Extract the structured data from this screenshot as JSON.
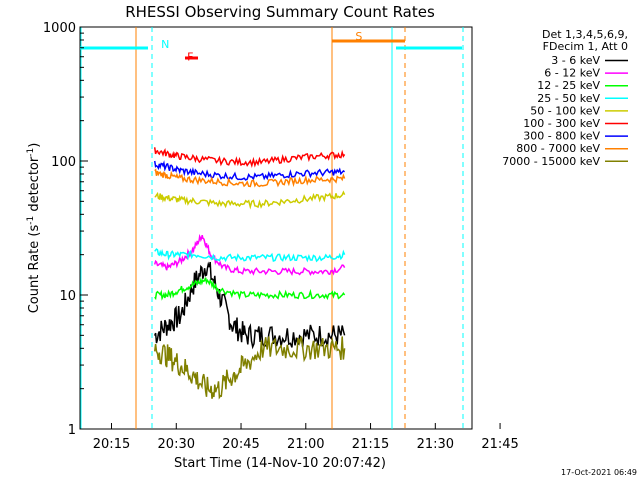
{
  "chart_data": {
    "type": "line",
    "title": "RHESSI Observing Summary Count Rates",
    "xlabel": "Start Time (14-Nov-10 20:07:42)",
    "ylabel_main": "Count Rate (s",
    "ylabel_sup1": "-1",
    "ylabel_mid": " detector",
    "ylabel_sup2": "-1",
    "ylabel_end": ")",
    "yscale": "log",
    "ylim": [
      1,
      1000
    ],
    "xlim_min": [
      7.7,
      98.5
    ],
    "x_ticks": [
      {
        "min": 15,
        "label": "20:15"
      },
      {
        "min": 30,
        "label": "20:30"
      },
      {
        "min": 45,
        "label": "20:45"
      },
      {
        "min": 60,
        "label": "21:00"
      },
      {
        "min": 75,
        "label": "21:15"
      },
      {
        "min": 90,
        "label": "21:30"
      },
      {
        "min": 105,
        "label": "21:45"
      }
    ],
    "x_tick_min_values": [
      15,
      30,
      45,
      60,
      75,
      90,
      105
    ],
    "y_ticks": [
      {
        "value": 1,
        "label": "1"
      },
      {
        "value": 10,
        "label": "10"
      },
      {
        "value": 100,
        "label": "100"
      },
      {
        "value": 1000,
        "label": "1000"
      }
    ],
    "legend_header": [
      "Det 1,3,4,5,6,9,",
      "FDecim 1, Att 0"
    ],
    "series": [
      {
        "name": "3 - 6 keV",
        "color": "#000000",
        "values_note": "noisy, ~4-20",
        "points": [
          [
            25,
            5
          ],
          [
            28,
            6
          ],
          [
            31,
            7
          ],
          [
            34,
            12
          ],
          [
            37,
            17
          ],
          [
            40,
            10
          ],
          [
            43,
            6
          ],
          [
            46,
            5
          ],
          [
            50,
            5
          ],
          [
            55,
            5
          ],
          [
            60,
            5
          ],
          [
            65,
            5
          ],
          [
            69,
            5
          ]
        ]
      },
      {
        "name": "6 - 12 keV",
        "color": "#ff00ff",
        "points": [
          [
            25,
            17
          ],
          [
            28,
            16
          ],
          [
            31,
            18
          ],
          [
            34,
            22
          ],
          [
            36,
            28
          ],
          [
            38,
            20
          ],
          [
            41,
            16
          ],
          [
            45,
            15
          ],
          [
            50,
            15
          ],
          [
            55,
            15
          ],
          [
            60,
            15
          ],
          [
            65,
            15
          ],
          [
            69,
            16
          ]
        ]
      },
      {
        "name": "12 - 25 keV",
        "color": "#00ff00",
        "points": [
          [
            25,
            10
          ],
          [
            28,
            10
          ],
          [
            31,
            11
          ],
          [
            34,
            12
          ],
          [
            37,
            13
          ],
          [
            40,
            11
          ],
          [
            45,
            10
          ],
          [
            50,
            10
          ],
          [
            55,
            10
          ],
          [
            60,
            10
          ],
          [
            65,
            10
          ],
          [
            69,
            10
          ]
        ]
      },
      {
        "name": "25 - 50 keV",
        "color": "#00ffff",
        "points": [
          [
            25,
            21
          ],
          [
            28,
            20
          ],
          [
            31,
            20
          ],
          [
            35,
            20
          ],
          [
            40,
            19
          ],
          [
            45,
            19
          ],
          [
            50,
            19
          ],
          [
            55,
            19
          ],
          [
            60,
            19
          ],
          [
            65,
            19
          ],
          [
            69,
            20
          ]
        ]
      },
      {
        "name": "50 - 100 keV",
        "color": "#cccc00",
        "points": [
          [
            25,
            55
          ],
          [
            28,
            53
          ],
          [
            31,
            51
          ],
          [
            35,
            50
          ],
          [
            40,
            48
          ],
          [
            45,
            48
          ],
          [
            50,
            48
          ],
          [
            55,
            50
          ],
          [
            60,
            52
          ],
          [
            65,
            54
          ],
          [
            69,
            56
          ]
        ]
      },
      {
        "name": "100 - 300 keV",
        "color": "#ff0000",
        "points": [
          [
            25,
            120
          ],
          [
            28,
            113
          ],
          [
            31,
            108
          ],
          [
            35,
            104
          ],
          [
            40,
            100
          ],
          [
            45,
            98
          ],
          [
            50,
            98
          ],
          [
            55,
            103
          ],
          [
            60,
            107
          ],
          [
            65,
            110
          ],
          [
            69,
            112
          ]
        ]
      },
      {
        "name": "300 - 800 keV",
        "color": "#0000ff",
        "points": [
          [
            25,
            95
          ],
          [
            28,
            90
          ],
          [
            31,
            85
          ],
          [
            35,
            81
          ],
          [
            40,
            78
          ],
          [
            45,
            76
          ],
          [
            50,
            76
          ],
          [
            55,
            79
          ],
          [
            60,
            81
          ],
          [
            65,
            82
          ],
          [
            69,
            83
          ]
        ]
      },
      {
        "name": "800 - 7000 keV",
        "color": "#ff8000",
        "points": [
          [
            25,
            82
          ],
          [
            28,
            78
          ],
          [
            31,
            74
          ],
          [
            35,
            72
          ],
          [
            40,
            70
          ],
          [
            45,
            68
          ],
          [
            50,
            68
          ],
          [
            55,
            70
          ],
          [
            60,
            72
          ],
          [
            65,
            73
          ],
          [
            69,
            74
          ]
        ]
      },
      {
        "name": "7000 - 15000 keV",
        "color": "#808000",
        "points": [
          [
            25,
            4
          ],
          [
            28,
            3.5
          ],
          [
            31,
            3
          ],
          [
            34,
            2.5
          ],
          [
            37,
            2
          ],
          [
            40,
            2
          ],
          [
            43,
            2.5
          ],
          [
            46,
            3
          ],
          [
            50,
            4
          ],
          [
            55,
            4
          ],
          [
            60,
            4
          ],
          [
            65,
            4
          ],
          [
            69,
            4
          ]
        ]
      }
    ],
    "annotations": [
      {
        "label": "N",
        "color": "#00ffff",
        "x_min": 26.5,
        "y": 700
      },
      {
        "label": "F",
        "color": "#ff0000",
        "x_min": 32.5,
        "y": 560
      },
      {
        "label": "S",
        "color": "#ff8000",
        "x_min": 71.5,
        "y": 800
      }
    ],
    "footer": "17-Oct-2021 06:49"
  }
}
